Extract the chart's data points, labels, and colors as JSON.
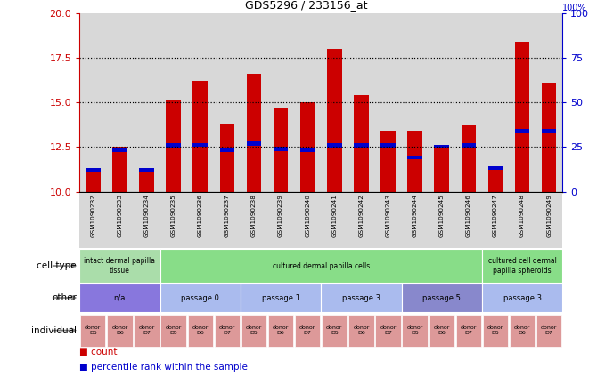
{
  "title": "GDS5296 / 233156_at",
  "samples": [
    "GSM1090232",
    "GSM1090233",
    "GSM1090234",
    "GSM1090235",
    "GSM1090236",
    "GSM1090237",
    "GSM1090238",
    "GSM1090239",
    "GSM1090240",
    "GSM1090241",
    "GSM1090242",
    "GSM1090243",
    "GSM1090244",
    "GSM1090245",
    "GSM1090246",
    "GSM1090247",
    "GSM1090248",
    "GSM1090249"
  ],
  "count_values": [
    11.2,
    12.5,
    11.1,
    15.1,
    16.2,
    13.8,
    16.6,
    14.7,
    15.0,
    18.0,
    15.4,
    13.4,
    13.4,
    12.5,
    13.7,
    11.3,
    18.4,
    16.1
  ],
  "percentile_values": [
    11.12,
    12.22,
    11.12,
    12.48,
    12.5,
    12.22,
    12.58,
    12.28,
    12.25,
    12.48,
    12.48,
    12.48,
    11.82,
    12.42,
    12.48,
    11.22,
    13.28,
    13.28
  ],
  "bar_bottom": 10.0,
  "ylim_left": [
    10,
    20
  ],
  "ylim_right": [
    0,
    100
  ],
  "yticks_left": [
    10,
    12.5,
    15,
    17.5,
    20
  ],
  "yticks_right": [
    0,
    25,
    50,
    75,
    100
  ],
  "bar_color": "#cc0000",
  "percentile_color": "#0000cc",
  "bar_width": 0.55,
  "perc_bar_height": 0.22,
  "cell_type_groups": [
    {
      "label": "intact dermal papilla\ntissue",
      "start": 0,
      "end": 3,
      "color": "#aaddaa"
    },
    {
      "label": "cultured dermal papilla cells",
      "start": 3,
      "end": 15,
      "color": "#88dd88"
    },
    {
      "label": "cultured cell dermal\npapilla spheroids",
      "start": 15,
      "end": 18,
      "color": "#88dd88"
    }
  ],
  "other_groups": [
    {
      "label": "n/a",
      "start": 0,
      "end": 3,
      "color": "#8877dd"
    },
    {
      "label": "passage 0",
      "start": 3,
      "end": 6,
      "color": "#aabbee"
    },
    {
      "label": "passage 1",
      "start": 6,
      "end": 9,
      "color": "#aabbee"
    },
    {
      "label": "passage 3",
      "start": 9,
      "end": 12,
      "color": "#aabbee"
    },
    {
      "label": "passage 5",
      "start": 12,
      "end": 15,
      "color": "#8888cc"
    },
    {
      "label": "passage 3",
      "start": 15,
      "end": 18,
      "color": "#aabbee"
    }
  ],
  "individual_labels": [
    "donor\nD5",
    "donor\nD6",
    "donor\nD7",
    "donor\nD5",
    "donor\nD6",
    "donor\nD7",
    "donor\nD5",
    "donor\nD6",
    "donor\nD7",
    "donor\nD5",
    "donor\nD6",
    "donor\nD7",
    "donor\nD5",
    "donor\nD6",
    "donor\nD7",
    "donor\nD5",
    "donor\nD6",
    "donor\nD7"
  ],
  "individual_color": "#dd9999",
  "col_bg_color": "#d8d8d8",
  "dotted_yticks": [
    12.5,
    15.0,
    17.5
  ],
  "right_pct_label": "100%"
}
